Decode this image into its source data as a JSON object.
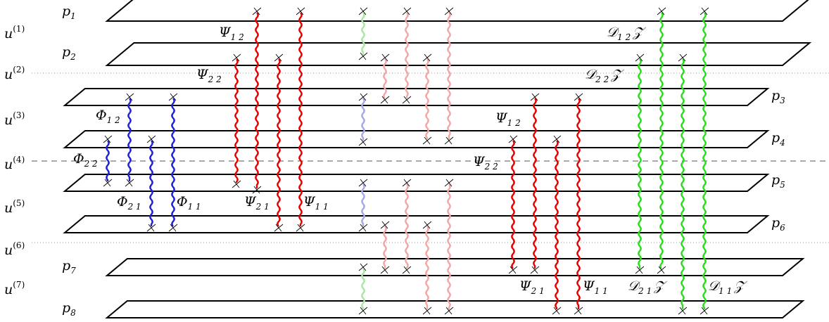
{
  "plane_labels": [
    {
      "base": "p",
      "sub": "1"
    },
    {
      "base": "p",
      "sub": "2"
    },
    {
      "base": "p",
      "sub": "3"
    },
    {
      "base": "p",
      "sub": "4"
    },
    {
      "base": "p",
      "sub": "5"
    },
    {
      "base": "p",
      "sub": "6"
    },
    {
      "base": "p",
      "sub": "7"
    },
    {
      "base": "p",
      "sub": "8"
    }
  ],
  "u_labels": [
    {
      "base": "u",
      "sup": "(1)"
    },
    {
      "base": "u",
      "sup": "(2)"
    },
    {
      "base": "u",
      "sup": "(3)"
    },
    {
      "base": "u",
      "sup": "(4)"
    },
    {
      "base": "u",
      "sup": "(5)"
    },
    {
      "base": "u",
      "sup": "(6)"
    },
    {
      "base": "u",
      "sup": "(7)"
    }
  ],
  "field_labels": [
    {
      "base": "Ψ",
      "sub": "1 2̇"
    },
    {
      "base": "Ψ",
      "sub": "2 2̇"
    },
    {
      "base": "Φ",
      "sub": "1 2̇"
    },
    {
      "base": "Φ",
      "sub": "2 2̇"
    },
    {
      "base": "Φ",
      "sub": "2 1"
    },
    {
      "base": "Φ",
      "sub": "1 1"
    },
    {
      "base": "Ψ",
      "sub": "2 1"
    },
    {
      "base": "Ψ",
      "sub": "1 1"
    },
    {
      "base": "Ψ",
      "sub": "1 2̇"
    },
    {
      "base": "Ψ",
      "sub": "2 2̇"
    },
    {
      "base": "Ψ",
      "sub": "2 1"
    },
    {
      "base": "Ψ",
      "sub": "1 1"
    },
    {
      "base": "𝒟",
      "sub": "1 2̇",
      "tail": "𝒵"
    },
    {
      "base": "𝒟",
      "sub": "2 2̇",
      "tail": "𝒵"
    },
    {
      "base": "𝒟",
      "sub": "2 1",
      "tail": "𝒵"
    },
    {
      "base": "𝒟",
      "sub": "1 1",
      "tail": "𝒵"
    }
  ],
  "colors": {
    "red": "#e60000",
    "red_light": "#f2a6a6",
    "green": "#2bdc1e",
    "green_light": "#a8e8a0",
    "blue": "#1f1fd6",
    "blue_light": "#a8a8e8",
    "plane": "#000000",
    "dotted": "#999999",
    "dashed": "#777777"
  },
  "wave_count": 42
}
